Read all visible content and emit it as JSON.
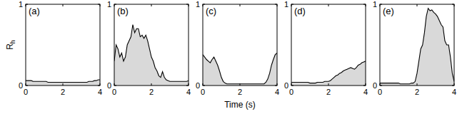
{
  "chart_data": [
    {
      "type": "area",
      "title": "(a)",
      "y_label": "Rh",
      "x": [
        0,
        0.1,
        0.2,
        0.3,
        0.4,
        0.5,
        0.6,
        0.7,
        0.8,
        0.9,
        1,
        1.1,
        1.2,
        1.3,
        1.4,
        1.5,
        1.6,
        1.7,
        1.8,
        1.9,
        2,
        2.1,
        2.2,
        2.3,
        2.4,
        2.5,
        2.6,
        2.7,
        2.8,
        2.9,
        3,
        3.1,
        3.2,
        3.3,
        3.4,
        3.5,
        3.6,
        3.7,
        3.8,
        3.9,
        4
      ],
      "values": [
        0.06,
        0.06,
        0.06,
        0.06,
        0.05,
        0.05,
        0.05,
        0.05,
        0.05,
        0.05,
        0.05,
        0.05,
        0.04,
        0.04,
        0.04,
        0.04,
        0.04,
        0.04,
        0.04,
        0.04,
        0.04,
        0.04,
        0.04,
        0.04,
        0.04,
        0.04,
        0.04,
        0.04,
        0.04,
        0.04,
        0.04,
        0.04,
        0.04,
        0.04,
        0.05,
        0.05,
        0.05,
        0.06,
        0.06,
        0.07,
        0.07
      ],
      "color": "#d9d9d9",
      "xlim": [
        0,
        4
      ],
      "ylim": [
        0,
        1
      ],
      "xticks": [
        0,
        2,
        4
      ],
      "yticks": [
        0,
        1
      ]
    },
    {
      "type": "area",
      "title": "(b)",
      "x": [
        0,
        0.1,
        0.2,
        0.3,
        0.4,
        0.5,
        0.6,
        0.7,
        0.8,
        0.9,
        1,
        1.1,
        1.2,
        1.3,
        1.4,
        1.5,
        1.6,
        1.7,
        1.8,
        1.9,
        2,
        2.1,
        2.2,
        2.3,
        2.4,
        2.5,
        2.6,
        2.7,
        2.8,
        2.9,
        3,
        3.1,
        3.2,
        3.3,
        3.4,
        3.5,
        3.6,
        3.7,
        3.8,
        3.9,
        4
      ],
      "values": [
        0.3,
        0.5,
        0.45,
        0.35,
        0.4,
        0.3,
        0.35,
        0.5,
        0.55,
        0.6,
        0.75,
        0.65,
        0.7,
        0.7,
        0.6,
        0.62,
        0.58,
        0.62,
        0.55,
        0.45,
        0.35,
        0.3,
        0.22,
        0.18,
        0.12,
        0.1,
        0.17,
        0.1,
        0.07,
        0.06,
        0.05,
        0.05,
        0.05,
        0.05,
        0.05,
        0.05,
        0.05,
        0.05,
        0.05,
        0.05,
        0.06
      ],
      "color": "#d9d9d9",
      "xlim": [
        0,
        4
      ],
      "ylim": [
        0,
        1
      ],
      "xticks": [
        0,
        2,
        4
      ],
      "yticks": [
        0,
        1
      ]
    },
    {
      "type": "area",
      "title": "(c)",
      "x_label": "Time (s)",
      "x": [
        0,
        0.1,
        0.2,
        0.3,
        0.4,
        0.5,
        0.6,
        0.7,
        0.8,
        0.9,
        1,
        1.1,
        1.2,
        1.3,
        1.4,
        1.5,
        1.6,
        1.7,
        1.8,
        1.9,
        2,
        2.1,
        2.2,
        2.3,
        2.4,
        2.5,
        2.6,
        2.7,
        2.8,
        2.9,
        3,
        3.1,
        3.2,
        3.3,
        3.4,
        3.5,
        3.6,
        3.7,
        3.8,
        3.9,
        4
      ],
      "values": [
        0.38,
        0.35,
        0.32,
        0.3,
        0.28,
        0.32,
        0.35,
        0.3,
        0.25,
        0.18,
        0.1,
        0.05,
        0.03,
        0.02,
        0.02,
        0.02,
        0.02,
        0.02,
        0.02,
        0.02,
        0.02,
        0.02,
        0.02,
        0.02,
        0.02,
        0.02,
        0.02,
        0.02,
        0.02,
        0.02,
        0.02,
        0.02,
        0.02,
        0.02,
        0.04,
        0.08,
        0.15,
        0.25,
        0.32,
        0.38,
        0.4
      ],
      "color": "#d9d9d9",
      "xlim": [
        0,
        4
      ],
      "ylim": [
        0,
        1
      ],
      "xticks": [
        0,
        2,
        4
      ],
      "yticks": [
        0,
        1
      ]
    },
    {
      "type": "area",
      "title": "(d)",
      "x": [
        0,
        0.1,
        0.2,
        0.3,
        0.4,
        0.5,
        0.6,
        0.7,
        0.8,
        0.9,
        1,
        1.1,
        1.2,
        1.3,
        1.4,
        1.5,
        1.6,
        1.7,
        1.8,
        1.9,
        2,
        2.1,
        2.2,
        2.3,
        2.4,
        2.5,
        2.6,
        2.7,
        2.8,
        2.9,
        3,
        3.1,
        3.2,
        3.3,
        3.4,
        3.5,
        3.6,
        3.7,
        3.8,
        3.9,
        4
      ],
      "values": [
        0.04,
        0.04,
        0.04,
        0.04,
        0.04,
        0.04,
        0.04,
        0.04,
        0.04,
        0.04,
        0.03,
        0.03,
        0.03,
        0.03,
        0.04,
        0.04,
        0.04,
        0.04,
        0.05,
        0.05,
        0.05,
        0.06,
        0.08,
        0.1,
        0.12,
        0.13,
        0.15,
        0.16,
        0.18,
        0.19,
        0.2,
        0.21,
        0.22,
        0.21,
        0.2,
        0.22,
        0.25,
        0.26,
        0.28,
        0.29,
        0.3
      ],
      "color": "#d9d9d9",
      "xlim": [
        0,
        4
      ],
      "ylim": [
        0,
        1
      ],
      "xticks": [
        0,
        2,
        4
      ],
      "yticks": [
        0,
        1
      ]
    },
    {
      "type": "area",
      "title": "(e)",
      "x": [
        0,
        0.1,
        0.2,
        0.3,
        0.4,
        0.5,
        0.6,
        0.7,
        0.8,
        0.9,
        1,
        1.1,
        1.2,
        1.3,
        1.4,
        1.5,
        1.6,
        1.7,
        1.8,
        1.9,
        2,
        2.1,
        2.2,
        2.3,
        2.4,
        2.5,
        2.6,
        2.7,
        2.8,
        2.9,
        3,
        3.1,
        3.2,
        3.3,
        3.4,
        3.5,
        3.6,
        3.7,
        3.8,
        3.9,
        4
      ],
      "values": [
        0.03,
        0.03,
        0.03,
        0.03,
        0.03,
        0.03,
        0.03,
        0.03,
        0.03,
        0.03,
        0.03,
        0.02,
        0.02,
        0.02,
        0.02,
        0.02,
        0.02,
        0.03,
        0.03,
        0.05,
        0.15,
        0.3,
        0.45,
        0.5,
        0.65,
        0.85,
        0.95,
        0.92,
        0.93,
        0.9,
        0.88,
        0.85,
        0.8,
        0.75,
        0.72,
        0.55,
        0.5,
        0.5,
        0.35,
        0.15,
        0.05
      ],
      "color": "#d9d9d9",
      "xlim": [
        0,
        4
      ],
      "ylim": [
        0,
        1
      ],
      "xticks": [
        0,
        2,
        4
      ],
      "yticks": [
        0,
        1
      ]
    }
  ]
}
